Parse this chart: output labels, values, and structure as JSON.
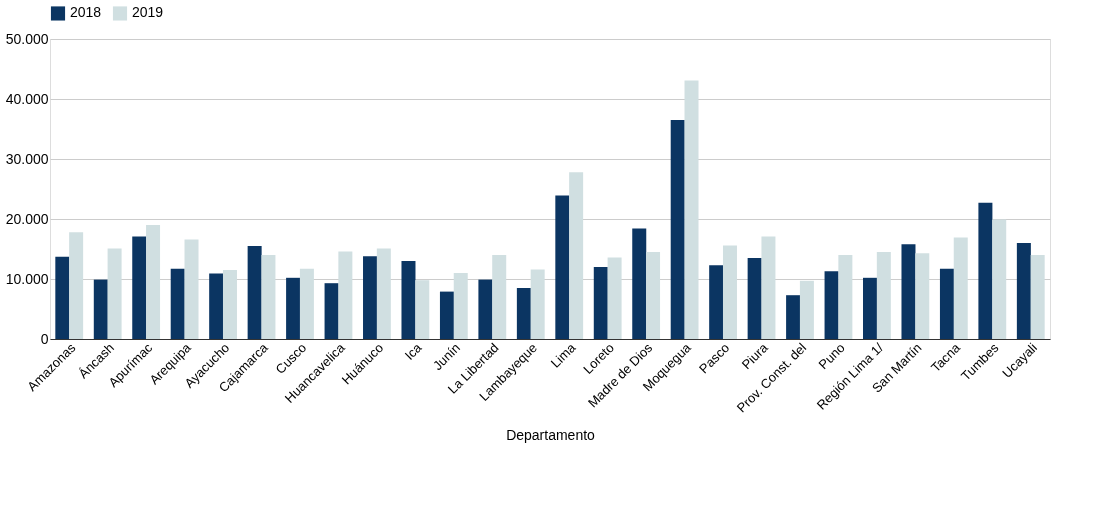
{
  "chart_data": {
    "type": "bar",
    "xlabel": "Departamento",
    "categories": [
      "Amazonas",
      "Áncash",
      "Apurímac",
      "Arequipa",
      "Ayacucho",
      "Cajamarca",
      "Cusco",
      "Huancavelica",
      "Huánuco",
      "Ica",
      "Junín",
      "La Libertad",
      "Lambayeque",
      "Lima",
      "Loreto",
      "Madre de Dios",
      "Moquegua",
      "Pasco",
      "Piura",
      "Prov. Const. del",
      "Puno",
      "Región Lima  1/",
      "San Martín",
      "Tacna",
      "Tumbes",
      "Ucayali"
    ],
    "series": [
      {
        "name": "2018",
        "color": "#0b3562",
        "values": [
          13700,
          9900,
          17100,
          11700,
          10900,
          15500,
          10200,
          9300,
          13800,
          13000,
          7900,
          9900,
          8500,
          23900,
          12000,
          18400,
          36500,
          12300,
          13500,
          7300,
          11300,
          10200,
          15800,
          11700,
          22700,
          16000
        ]
      },
      {
        "name": "2019",
        "color": "#d0dfe1",
        "values": [
          17800,
          15100,
          19000,
          16600,
          11500,
          14000,
          11700,
          14600,
          15100,
          9800,
          11000,
          14000,
          11600,
          27800,
          13600,
          14500,
          43100,
          15600,
          17100,
          9700,
          14000,
          14500,
          14300,
          16900,
          19900,
          14000
        ]
      }
    ],
    "ylim": [
      0,
      50000
    ],
    "yticks": [
      {
        "value": 0,
        "label": "0"
      },
      {
        "value": 10000,
        "label": "10.000"
      },
      {
        "value": 20000,
        "label": "20.000"
      },
      {
        "value": 30000,
        "label": "30.000"
      },
      {
        "value": 40000,
        "label": "40.000"
      },
      {
        "value": 50000,
        "label": "50.000"
      }
    ],
    "grid": "y",
    "legend": "top"
  }
}
